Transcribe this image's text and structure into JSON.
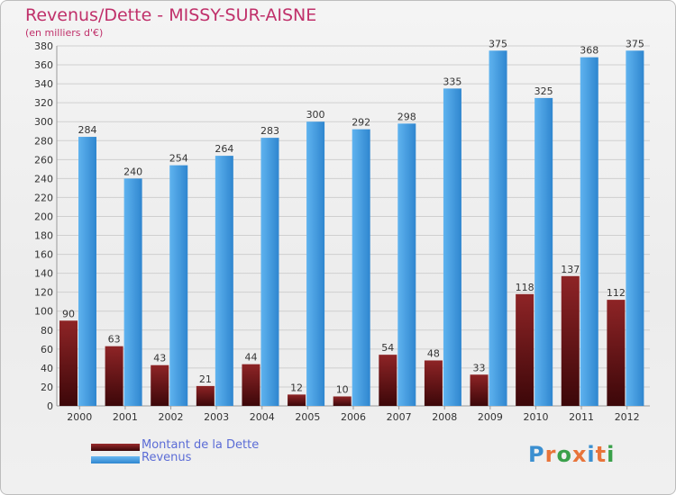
{
  "header": {
    "title": "Revenus/Dette - MISSY-SUR-AISNE",
    "subtitle": "(en milliers d'€)"
  },
  "legend": {
    "items": [
      {
        "label": "Montant de la Dette",
        "color": "#7a1a1c"
      },
      {
        "label": "Revenus",
        "color": "#4ea6e8"
      }
    ]
  },
  "logo": {
    "text": "Proxiti",
    "colors": [
      "#3b8fd0",
      "#e8743a",
      "#3aa04a",
      "#e8743a",
      "#3b8fd0",
      "#e8743a",
      "#3aa04a"
    ]
  },
  "chart_data": {
    "type": "bar",
    "title": "Revenus/Dette - MISSY-SUR-AISNE",
    "ylabel": "(en milliers d'€)",
    "categories": [
      "2000",
      "2001",
      "2002",
      "2003",
      "2004",
      "2005",
      "2006",
      "2007",
      "2008",
      "2009",
      "2010",
      "2011",
      "2012"
    ],
    "series": [
      {
        "name": "Montant de la Dette",
        "color": "#7a1a1c",
        "values": [
          90,
          63,
          43,
          21,
          44,
          12,
          10,
          54,
          48,
          33,
          118,
          137,
          112
        ]
      },
      {
        "name": "Revenus",
        "color": "#4ea6e8",
        "values": [
          284,
          240,
          254,
          264,
          283,
          300,
          292,
          298,
          335,
          375,
          325,
          368,
          375
        ]
      }
    ],
    "ylim": [
      0,
      380
    ],
    "ytick_step": 20,
    "grid": true,
    "legend_position": "bottom-left"
  }
}
